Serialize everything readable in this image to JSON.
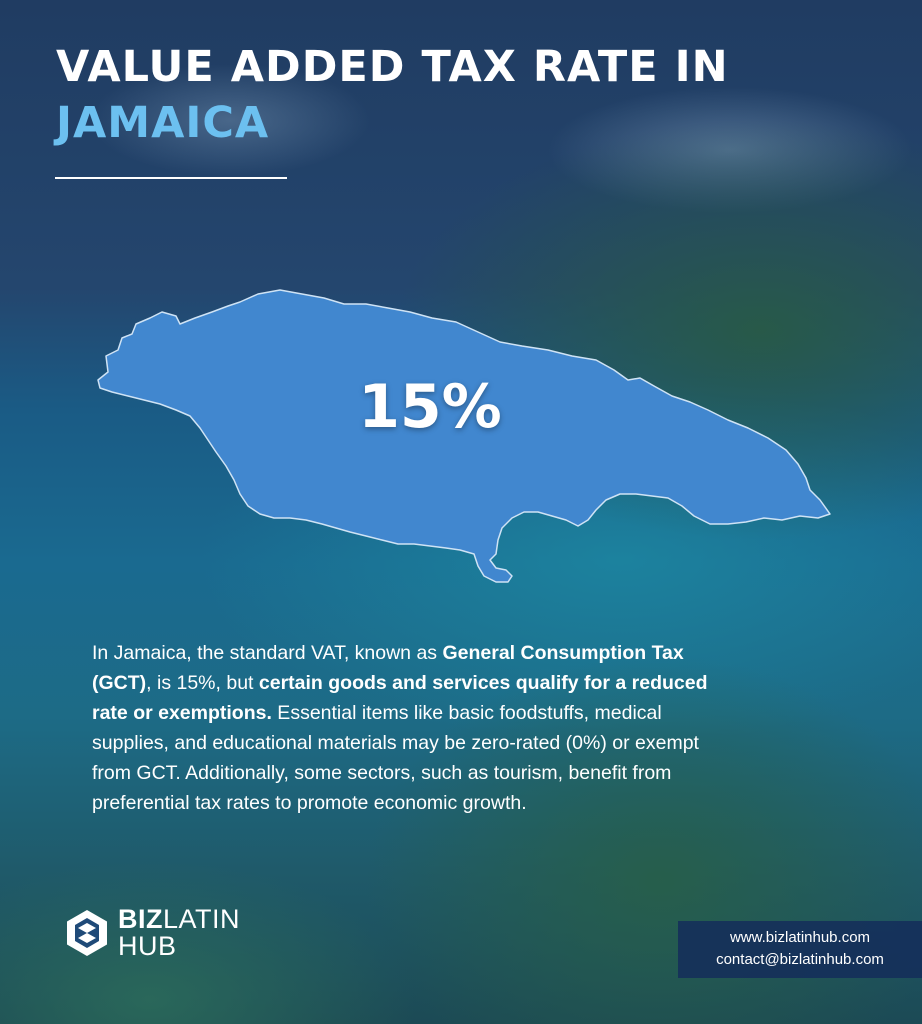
{
  "title": {
    "line1": "VALUE ADDED TAX RATE IN",
    "line2": "JAMAICA"
  },
  "map": {
    "rate_label": "15%",
    "fill_color": "#4187cf",
    "outline_color": "#cfe3f5"
  },
  "description": {
    "p1": "In Jamaica, the standard VAT, known as ",
    "b1": "General Consumption Tax (GCT)",
    "p2": ", is 15%, but ",
    "b2": "certain goods and services qualify for a reduced rate or exemptions.",
    "p3": " Essential items like basic foodstuffs, medical supplies, and educational materials may be zero-rated (0%) or exempt from GCT. Additionally, some sectors, such as tourism, benefit from preferential tax rates to promote economic growth."
  },
  "logo": {
    "biz": "BIZ",
    "latin": "LATIN",
    "hub": "HUB",
    "icon": "bizlatinhub-logo-icon"
  },
  "contact": {
    "website": "www.bizlatinhub.com",
    "email": "contact@bizlatinhub.com"
  },
  "colors": {
    "title_accent": "#6cc0f0",
    "contact_box": "#142d5a"
  }
}
